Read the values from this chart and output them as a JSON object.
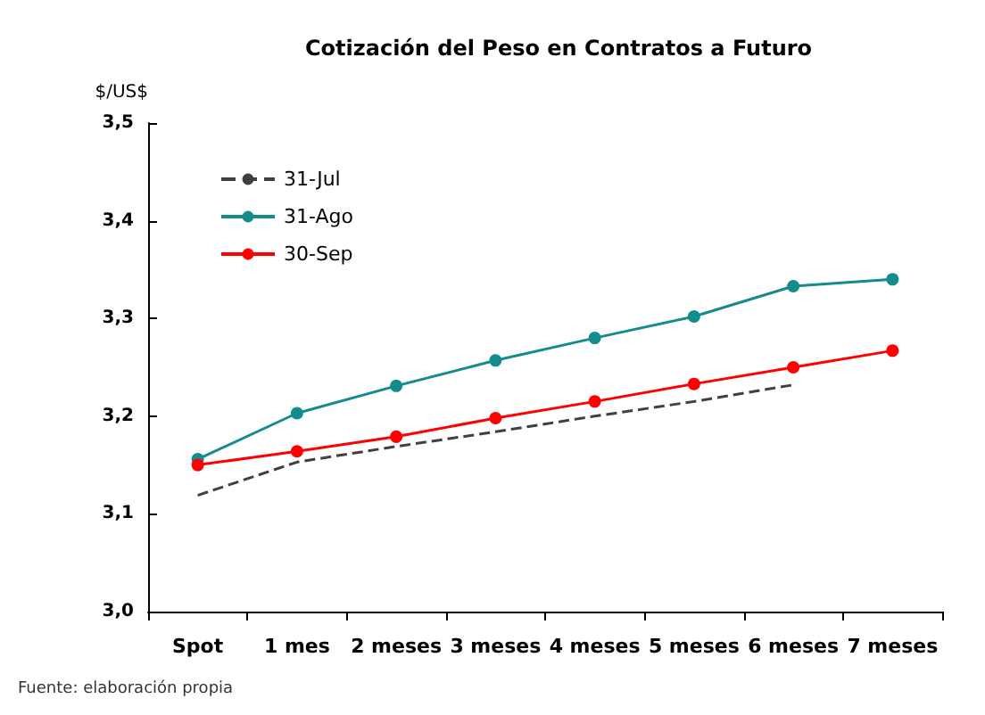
{
  "chart_data": {
    "type": "line",
    "title": "Cotización del Peso en Contratos a Futuro",
    "ylabel": "$/US$",
    "annotations": [
      "Fuente: elaboración propia"
    ],
    "categories": [
      "Spot",
      "1 mes",
      "2 meses",
      "3 meses",
      "4 meses",
      "5 meses",
      "6 meses",
      "7 meses"
    ],
    "series": [
      {
        "name": "31-Jul",
        "color": "#404040",
        "marker": "none",
        "line_style": "dashed",
        "values": [
          3.119,
          3.153,
          3.169,
          3.184,
          3.2,
          3.215,
          3.232,
          null
        ]
      },
      {
        "name": "31-Ago",
        "color": "#148c8c",
        "marker": "circle",
        "line_style": "solid",
        "values": [
          3.156,
          3.203,
          3.231,
          3.257,
          3.28,
          3.302,
          3.333,
          3.34
        ]
      },
      {
        "name": "30-Sep",
        "color": "#ff0000",
        "marker": "circle",
        "line_style": "solid",
        "values": [
          3.15,
          3.164,
          3.179,
          3.198,
          3.215,
          3.233,
          3.25,
          3.267
        ]
      }
    ],
    "ylim": [
      3.0,
      3.5
    ],
    "yticks": [
      {
        "value": 3.0,
        "label": "3,0"
      },
      {
        "value": 3.1,
        "label": "3,1"
      },
      {
        "value": 3.2,
        "label": "3,2"
      },
      {
        "value": 3.3,
        "label": "3,3"
      },
      {
        "value": 3.4,
        "label": "3,4"
      },
      {
        "value": 3.5,
        "label": "3,5"
      }
    ],
    "grid": false,
    "legend": "top left"
  }
}
